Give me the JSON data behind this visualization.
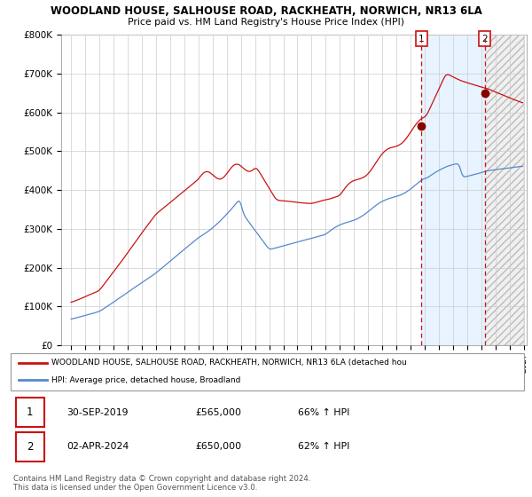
{
  "title": "WOODLAND HOUSE, SALHOUSE ROAD, RACKHEATH, NORWICH, NR13 6LA",
  "subtitle": "Price paid vs. HM Land Registry's House Price Index (HPI)",
  "ylim": [
    0,
    800000
  ],
  "yticks": [
    0,
    100000,
    200000,
    300000,
    400000,
    500000,
    600000,
    700000,
    800000
  ],
  "ytick_labels": [
    "£0",
    "£100K",
    "£200K",
    "£300K",
    "£400K",
    "£500K",
    "£600K",
    "£700K",
    "£800K"
  ],
  "hpi_color": "#5588cc",
  "price_color": "#cc1111",
  "sale1_yr": 2019.75,
  "sale1_price": 565000,
  "sale2_yr": 2024.25,
  "sale2_price": 650000,
  "legend_price_label": "WOODLAND HOUSE, SALHOUSE ROAD, RACKHEATH, NORWICH, NR13 6LA (detached hou",
  "legend_hpi_label": "HPI: Average price, detached house, Broadland",
  "table_rows": [
    {
      "num": "1",
      "date": "30-SEP-2019",
      "price": "£565,000",
      "hpi": "66% ↑ HPI"
    },
    {
      "num": "2",
      "date": "02-APR-2024",
      "price": "£650,000",
      "hpi": "62% ↑ HPI"
    }
  ],
  "footnote": "Contains HM Land Registry data © Crown copyright and database right 2024.\nThis data is licensed under the Open Government Licence v3.0.",
  "grid_color": "#cccccc",
  "shade_color": "#ddeeff",
  "hatch_color": "#cccccc"
}
